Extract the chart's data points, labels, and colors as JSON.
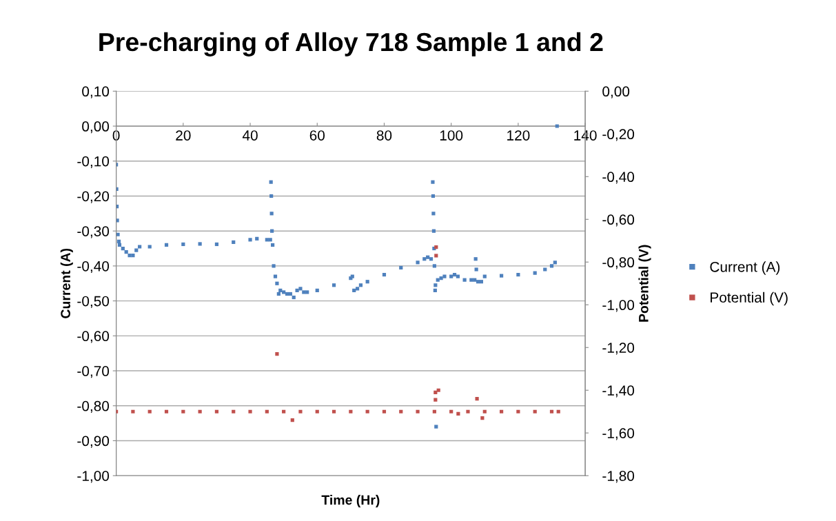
{
  "chart_data": {
    "type": "scatter",
    "title": "Pre-charging of Alloy 718 Sample 1 and 2",
    "xlabel": "Time (Hr)",
    "ylabel": "Current (A)",
    "y2label": "Potential (V)",
    "xlim": [
      0,
      140
    ],
    "xticks": [
      0,
      20,
      40,
      60,
      80,
      100,
      120,
      140
    ],
    "ylim": [
      -1.0,
      0.1
    ],
    "yticks": [
      {
        "value": -1.0,
        "label": "-1,00"
      },
      {
        "value": -0.9,
        "label": "-0,90"
      },
      {
        "value": -0.8,
        "label": "-0,80"
      },
      {
        "value": -0.7,
        "label": "-0,70"
      },
      {
        "value": -0.6,
        "label": "-0,60"
      },
      {
        "value": -0.5,
        "label": "-0,50"
      },
      {
        "value": -0.4,
        "label": "-0,40"
      },
      {
        "value": -0.3,
        "label": "-0,30"
      },
      {
        "value": -0.2,
        "label": "-0,20"
      },
      {
        "value": -0.1,
        "label": "-0,10"
      },
      {
        "value": 0.0,
        "label": "0,00"
      },
      {
        "value": 0.1,
        "label": "0,10"
      }
    ],
    "y2lim": [
      -1.8,
      0.0
    ],
    "y2ticks": [
      {
        "value": -1.8,
        "label": "-1,80"
      },
      {
        "value": -1.6,
        "label": "-1,60"
      },
      {
        "value": -1.4,
        "label": "-1,40"
      },
      {
        "value": -1.2,
        "label": "-1,20"
      },
      {
        "value": -1.0,
        "label": "-1,00"
      },
      {
        "value": -0.8,
        "label": "-0,80"
      },
      {
        "value": -0.6,
        "label": "-0,60"
      },
      {
        "value": -0.4,
        "label": "-0,40"
      },
      {
        "value": -0.2,
        "label": "-0,20"
      },
      {
        "value": 0.0,
        "label": "0,00"
      }
    ],
    "grid": "y",
    "legend": "right",
    "marker": "square",
    "series": [
      {
        "name": "Current (A)",
        "color": "#4f81bd",
        "x": [
          0,
          0.1,
          0.2,
          0.3,
          0.5,
          0.8,
          1,
          2,
          3,
          4,
          5,
          6,
          7,
          10,
          15,
          20,
          25,
          30,
          35,
          40,
          42,
          45,
          46,
          46.2,
          46.3,
          46.4,
          46.5,
          46.7,
          47,
          47.5,
          48,
          48.5,
          49,
          50,
          51,
          52,
          53,
          54,
          55,
          56,
          57,
          60,
          65,
          70,
          70.5,
          71,
          72,
          73,
          75,
          80,
          85,
          90,
          92,
          93,
          94,
          94.5,
          94.6,
          94.7,
          94.8,
          94.9,
          95,
          95.2,
          95.3,
          95.5,
          96,
          97,
          98,
          100,
          101,
          102,
          104,
          106,
          107,
          107.3,
          107.5,
          108,
          109,
          110,
          115,
          120,
          125,
          128,
          130,
          131,
          131.6
        ],
        "values": [
          -0.11,
          -0.18,
          -0.23,
          -0.27,
          -0.31,
          -0.33,
          -0.34,
          -0.35,
          -0.36,
          -0.37,
          -0.37,
          -0.355,
          -0.345,
          -0.345,
          -0.34,
          -0.338,
          -0.337,
          -0.338,
          -0.332,
          -0.325,
          -0.322,
          -0.325,
          -0.325,
          -0.16,
          -0.2,
          -0.25,
          -0.3,
          -0.34,
          -0.4,
          -0.43,
          -0.45,
          -0.48,
          -0.47,
          -0.475,
          -0.48,
          -0.48,
          -0.49,
          -0.47,
          -0.465,
          -0.475,
          -0.475,
          -0.47,
          -0.455,
          -0.435,
          -0.43,
          -0.47,
          -0.465,
          -0.455,
          -0.445,
          -0.425,
          -0.405,
          -0.39,
          -0.38,
          -0.375,
          -0.38,
          -0.16,
          -0.2,
          -0.25,
          -0.3,
          -0.35,
          -0.4,
          -0.47,
          -0.455,
          -0.86,
          -0.44,
          -0.435,
          -0.43,
          -0.43,
          -0.425,
          -0.43,
          -0.44,
          -0.44,
          -0.44,
          -0.38,
          -0.41,
          -0.445,
          -0.445,
          -0.43,
          -0.428,
          -0.425,
          -0.42,
          -0.41,
          -0.4,
          -0.39,
          0.0
        ]
      },
      {
        "name": "Potential (V)",
        "color": "#c0504d",
        "axis": "y2",
        "x": [
          0,
          5,
          10,
          15,
          20,
          25,
          30,
          35,
          40,
          45,
          48,
          50,
          52.6,
          55,
          60,
          65,
          70,
          75,
          80,
          85,
          90,
          95,
          95.3,
          95.3,
          95.5,
          95.5,
          96.2,
          100,
          102.1,
          105,
          107.7,
          109.3,
          110,
          115,
          120,
          125,
          130,
          132
        ],
        "values": [
          -1.5,
          -1.5,
          -1.5,
          -1.5,
          -1.5,
          -1.5,
          -1.5,
          -1.5,
          -1.5,
          -1.5,
          -1.23,
          -1.5,
          -1.54,
          -1.5,
          -1.5,
          -1.5,
          -1.5,
          -1.5,
          -1.5,
          -1.5,
          -1.5,
          -1.5,
          -1.445,
          -1.41,
          -0.73,
          -0.77,
          -1.4,
          -1.5,
          -1.51,
          -1.5,
          -1.44,
          -1.53,
          -1.5,
          -1.5,
          -1.5,
          -1.5,
          -1.5,
          -1.5
        ]
      }
    ]
  }
}
